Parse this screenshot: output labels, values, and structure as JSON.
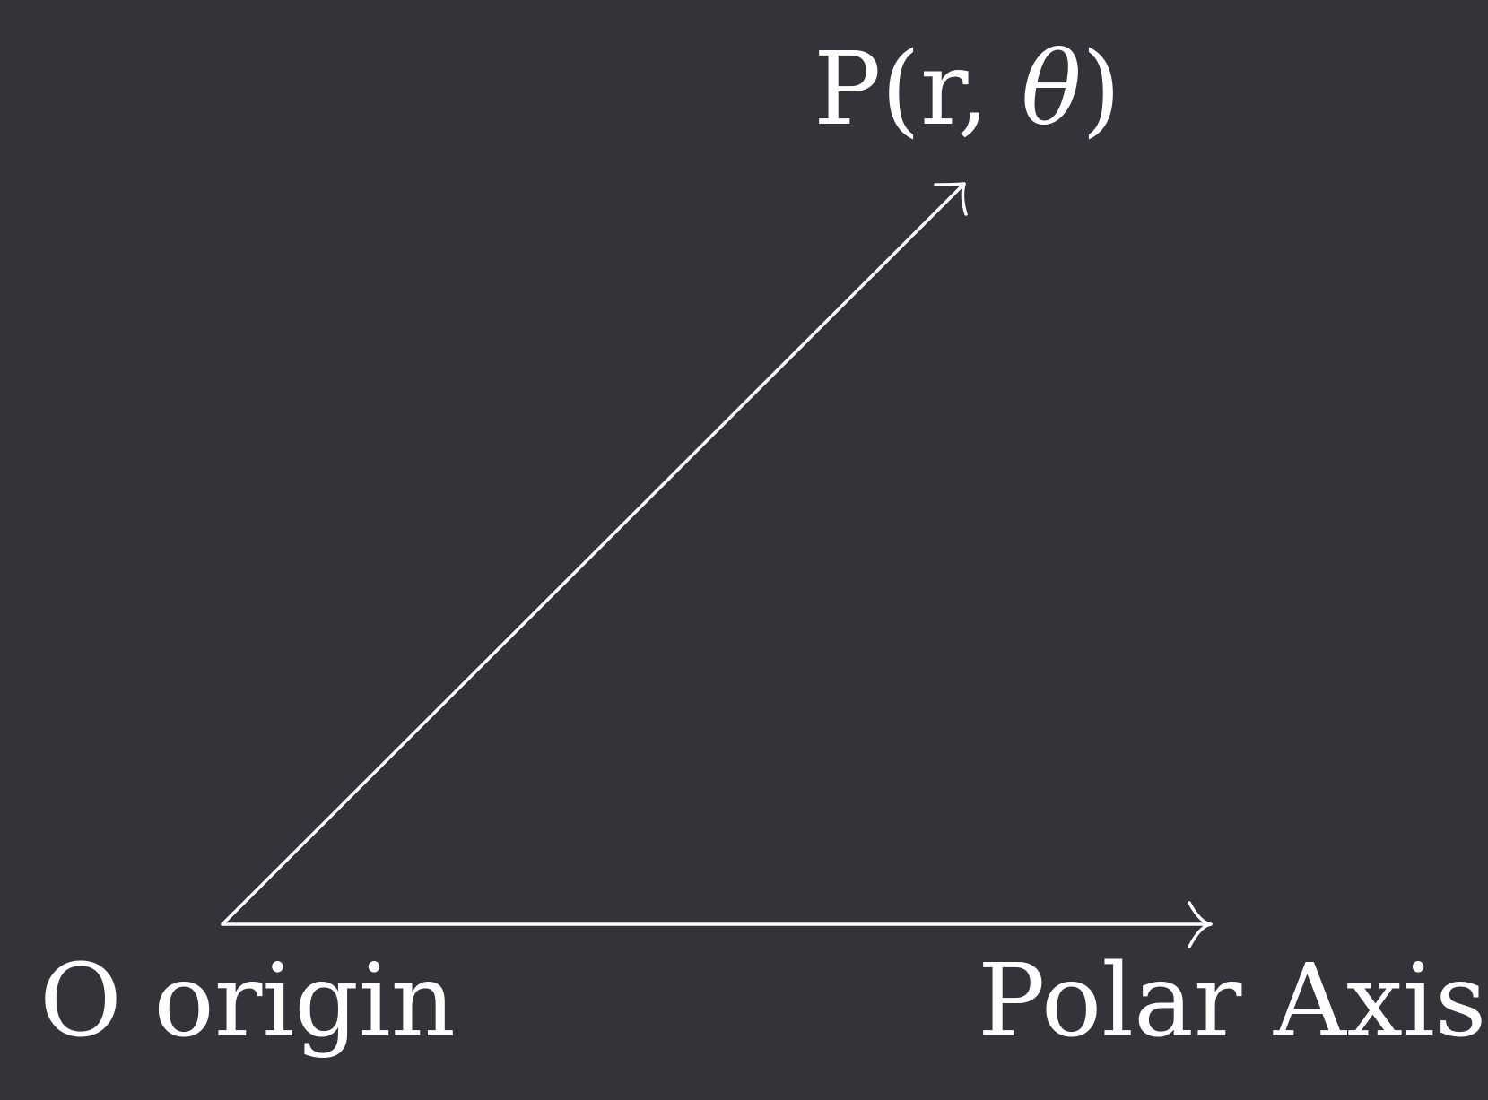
{
  "diagram": {
    "background_color": "#333439",
    "foreground_color": "#ffffff",
    "point_label": {
      "prefix": "P(r, ",
      "theta": "θ",
      "suffix": ")"
    },
    "origin_label": "O origin",
    "axis_label": "Polar Axis"
  }
}
